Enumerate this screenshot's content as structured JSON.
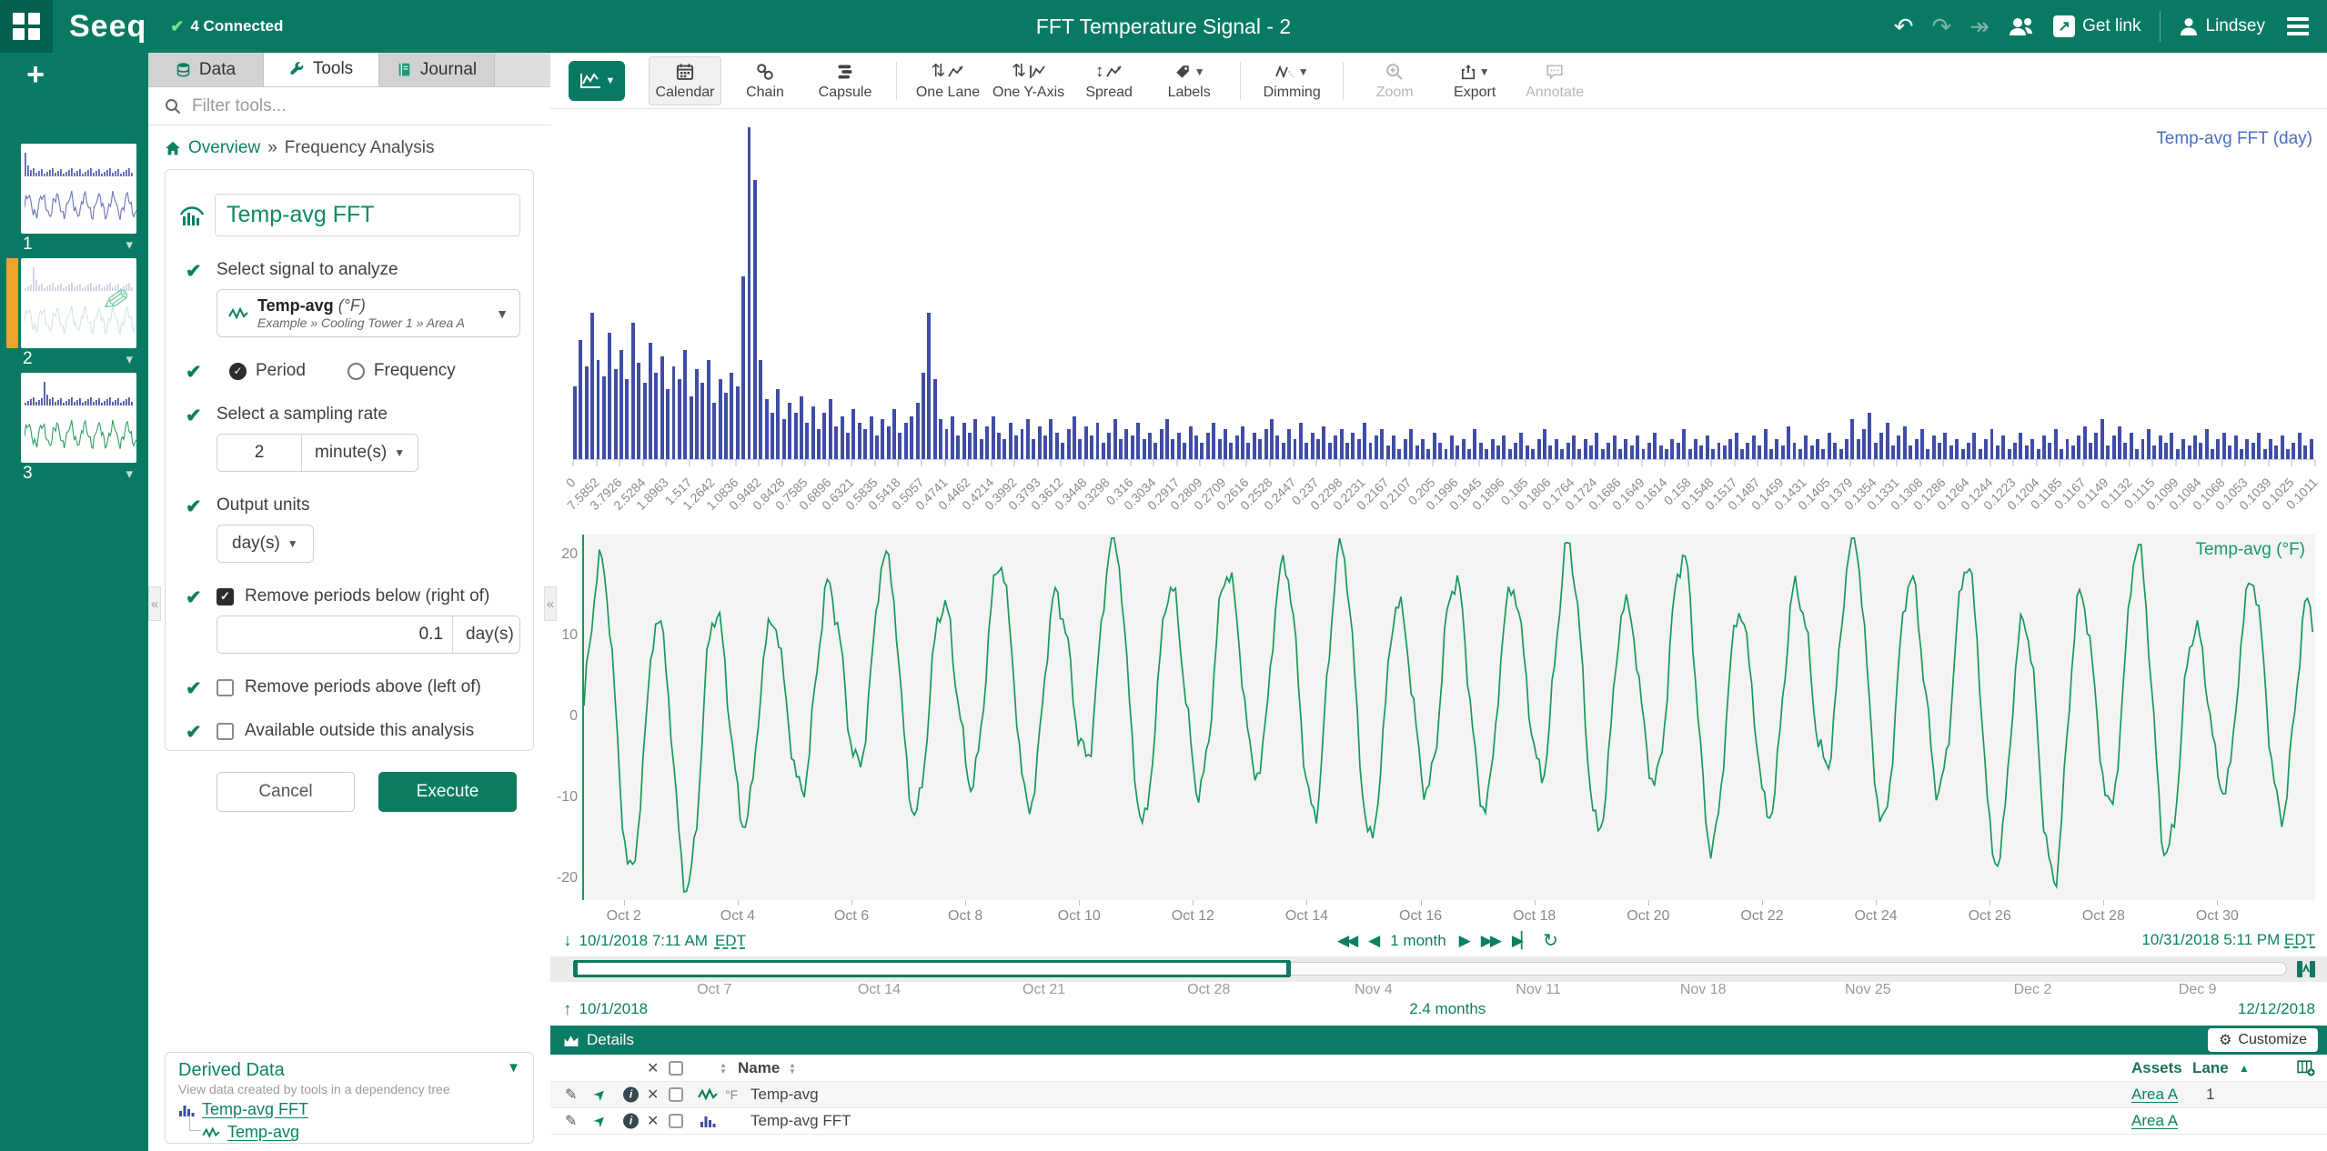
{
  "header": {
    "logo": "Seeq",
    "connected": "4 Connected",
    "title": "FFT Temperature Signal - 2",
    "get_link": "Get link",
    "user": "Lindsey"
  },
  "sidebar": {
    "worksheets": [
      {
        "label": "1"
      },
      {
        "label": "2"
      },
      {
        "label": "3"
      }
    ]
  },
  "tools": {
    "tabs": [
      {
        "label": "Data"
      },
      {
        "label": "Tools"
      },
      {
        "label": "Journal"
      }
    ],
    "filter_placeholder": "Filter tools...",
    "breadcrumb": {
      "root": "Overview",
      "sep": "»",
      "current": "Frequency Analysis"
    },
    "form": {
      "name_value": "Temp-avg FFT",
      "swatch_color": "#4351a7",
      "signal_label": "Select signal to analyze",
      "signal_name": "Temp-avg",
      "signal_unit": "(°F)",
      "signal_path": "Example » Cooling Tower 1 » Area A",
      "radio_period": "Period",
      "radio_frequency": "Frequency",
      "sampling_label": "Select a sampling rate",
      "sampling_value": "2",
      "sampling_unit": "minute(s)",
      "output_label": "Output units",
      "output_unit": "day(s)",
      "below_label": "Remove periods below (right of)",
      "below_value": "0.1",
      "below_unit": "day(s)",
      "above_label": "Remove periods above (left of)",
      "outside_label": "Available outside this analysis",
      "cancel": "Cancel",
      "execute": "Execute"
    },
    "derived": {
      "title": "Derived Data",
      "subtitle": "View data created by tools in a dependency tree",
      "items": [
        {
          "name": "Temp-avg FFT"
        },
        {
          "name": "Temp-avg"
        }
      ]
    }
  },
  "toolbar": {
    "items": [
      {
        "label": "Calendar"
      },
      {
        "label": "Chain"
      },
      {
        "label": "Capsule"
      },
      {
        "label": "One Lane"
      },
      {
        "label": "One Y-Axis"
      },
      {
        "label": "Spread"
      },
      {
        "label": "Labels"
      },
      {
        "label": "Dimming"
      },
      {
        "label": "Zoom"
      },
      {
        "label": "Export"
      },
      {
        "label": "Annotate"
      }
    ]
  },
  "timebar": {
    "start": "10/1/2018 7:11 AM",
    "start_tz": "EDT",
    "duration": "1 month",
    "end": "10/31/2018 5:11 PM",
    "end_tz": "EDT"
  },
  "range_slider": {
    "ticks": [
      "Oct 7",
      "Oct 14",
      "Oct 21",
      "Oct 28",
      "Nov 4",
      "Nov 11",
      "Nov 18",
      "Nov 25",
      "Dec 2",
      "Dec 9"
    ],
    "start": "10/1/2018",
    "duration": "2.4 months",
    "end": "12/12/2018"
  },
  "details": {
    "title": "Details",
    "customize": "Customize",
    "name_col": "Name",
    "assets_col": "Assets",
    "lane_col": "Lane",
    "rows": [
      {
        "unit": "°F",
        "name": "Temp-avg",
        "asset": "Area A",
        "lane": "1"
      },
      {
        "unit": "",
        "name": "Temp-avg FFT",
        "asset": "Area A",
        "lane": ""
      }
    ]
  },
  "chart_data": [
    {
      "type": "bar",
      "title": "Temp-avg FFT (day)",
      "bar_color": "#3f4da6",
      "xlabel_units": "day",
      "x_tick_labels": [
        "0",
        "7.5852",
        "3.7926",
        "2.5284",
        "1.8963",
        "1.517",
        "1.2642",
        "1.0836",
        "0.9482",
        "0.8428",
        "0.7585",
        "0.6896",
        "0.6321",
        "0.5835",
        "0.5418",
        "0.5057",
        "0.4741",
        "0.4462",
        "0.4214",
        "0.3992",
        "0.3793",
        "0.3612",
        "0.3448",
        "0.3298",
        "0.316",
        "0.3034",
        "0.2917",
        "0.2809",
        "0.2709",
        "0.2616",
        "0.2528",
        "0.2447",
        "0.237",
        "0.2298",
        "0.2231",
        "0.2167",
        "0.2107",
        "0.205",
        "0.1996",
        "0.1945",
        "0.1896",
        "0.185",
        "0.1806",
        "0.1764",
        "0.1724",
        "0.1686",
        "0.1649",
        "0.1614",
        "0.158",
        "0.1548",
        "0.1517",
        "0.1487",
        "0.1459",
        "0.1431",
        "0.1405",
        "0.1379",
        "0.1354",
        "0.1331",
        "0.1308",
        "0.1286",
        "0.1264",
        "0.1244",
        "0.1223",
        "0.1204",
        "0.1185",
        "0.1167",
        "0.1149",
        "0.1132",
        "0.1115",
        "0.1099",
        "0.1084",
        "0.1068",
        "0.1053",
        "0.1039",
        "0.1025",
        "0.1011"
      ],
      "ylim": [
        0,
        100
      ],
      "values": [
        22,
        36,
        28,
        44,
        30,
        25,
        38,
        27,
        33,
        24,
        41,
        29,
        23,
        35,
        26,
        31,
        21,
        28,
        24,
        33,
        19,
        27,
        23,
        30,
        17,
        24,
        20,
        26,
        22,
        55,
        100,
        84,
        30,
        18,
        14,
        21,
        12,
        17,
        14,
        19,
        11,
        16,
        9,
        14,
        18,
        10,
        13,
        8,
        15,
        11,
        9,
        13,
        7,
        12,
        10,
        15,
        8,
        11,
        13,
        17,
        26,
        44,
        24,
        12,
        9,
        13,
        7,
        11,
        8,
        12,
        6,
        10,
        13,
        8,
        6,
        11,
        7,
        9,
        12,
        6,
        10,
        7,
        12,
        8,
        5,
        9,
        13,
        6,
        10,
        7,
        11,
        5,
        8,
        12,
        6,
        9,
        7,
        11,
        6,
        8,
        5,
        9,
        12,
        6,
        8,
        5,
        10,
        7,
        5,
        8,
        11,
        6,
        9,
        5,
        7,
        10,
        5,
        8,
        6,
        9,
        12,
        7,
        5,
        9,
        6,
        11,
        5,
        8,
        6,
        10,
        5,
        7,
        9,
        5,
        8,
        6,
        11,
        5,
        7,
        9,
        4,
        7,
        3,
        6,
        9,
        4,
        6,
        3,
        8,
        5,
        3,
        7,
        4,
        6,
        3,
        9,
        5,
        3,
        6,
        4,
        7,
        3,
        5,
        8,
        4,
        3,
        6,
        9,
        4,
        6,
        3,
        5,
        7,
        3,
        6,
        4,
        8,
        3,
        5,
        7,
        3,
        6,
        4,
        7,
        3,
        5,
        8,
        4,
        3,
        6,
        5,
        9,
        3,
        6,
        4,
        7,
        3,
        5,
        4,
        6,
        8,
        3,
        5,
        7,
        4,
        9,
        3,
        6,
        4,
        10,
        5,
        3,
        7,
        4,
        6,
        3,
        8,
        5,
        3,
        6,
        12,
        6,
        9,
        14,
        5,
        8,
        11,
        4,
        7,
        10,
        4,
        6,
        9,
        3,
        7,
        5,
        8,
        4,
        6,
        3,
        5,
        8,
        3,
        6,
        9,
        4,
        7,
        3,
        5,
        8,
        4,
        6,
        3,
        7,
        5,
        9,
        3,
        6,
        4,
        7,
        10,
        5,
        8,
        12,
        4,
        7,
        10,
        5,
        8,
        3,
        6,
        9,
        4,
        7,
        5,
        8,
        3,
        6,
        4,
        7,
        5,
        9,
        3,
        6,
        8,
        4,
        7,
        3,
        6,
        5,
        8,
        3,
        6,
        4,
        7,
        3,
        5,
        8,
        4,
        6
      ]
    },
    {
      "type": "line",
      "title": "Temp-avg (°F)",
      "line_color": "#16995c",
      "x_tick_labels": [
        "Oct 2",
        "Oct 4",
        "Oct 6",
        "Oct 8",
        "Oct 10",
        "Oct 12",
        "Oct 14",
        "Oct 16",
        "Oct 18",
        "Oct 20",
        "Oct 22",
        "Oct 24",
        "Oct 26",
        "Oct 28",
        "Oct 30"
      ],
      "yticks": [
        20,
        10,
        0,
        -10,
        -20
      ],
      "ylim": [
        -21.8,
        21.8
      ],
      "x_range": [
        "10/1/2018 7:11 AM EDT",
        "10/31/2018 5:11 PM EDT"
      ],
      "daily_high": [
        19,
        12,
        13,
        12,
        16,
        20,
        14,
        19,
        15,
        22,
        16,
        18,
        19,
        21,
        14,
        17,
        16,
        21,
        14,
        20,
        13,
        16,
        22,
        17,
        19,
        12,
        15,
        21,
        11,
        17,
        14
      ],
      "daily_low": [
        -7,
        -19,
        -21,
        -13,
        -9,
        -6,
        -12,
        -8,
        -11,
        -5,
        -13,
        -9,
        -7,
        -12,
        -15,
        -9,
        -11,
        -7,
        -14,
        -8,
        -16,
        -12,
        -6,
        -13,
        -9,
        -18,
        -20,
        -11,
        -17,
        -9,
        -12
      ]
    }
  ]
}
